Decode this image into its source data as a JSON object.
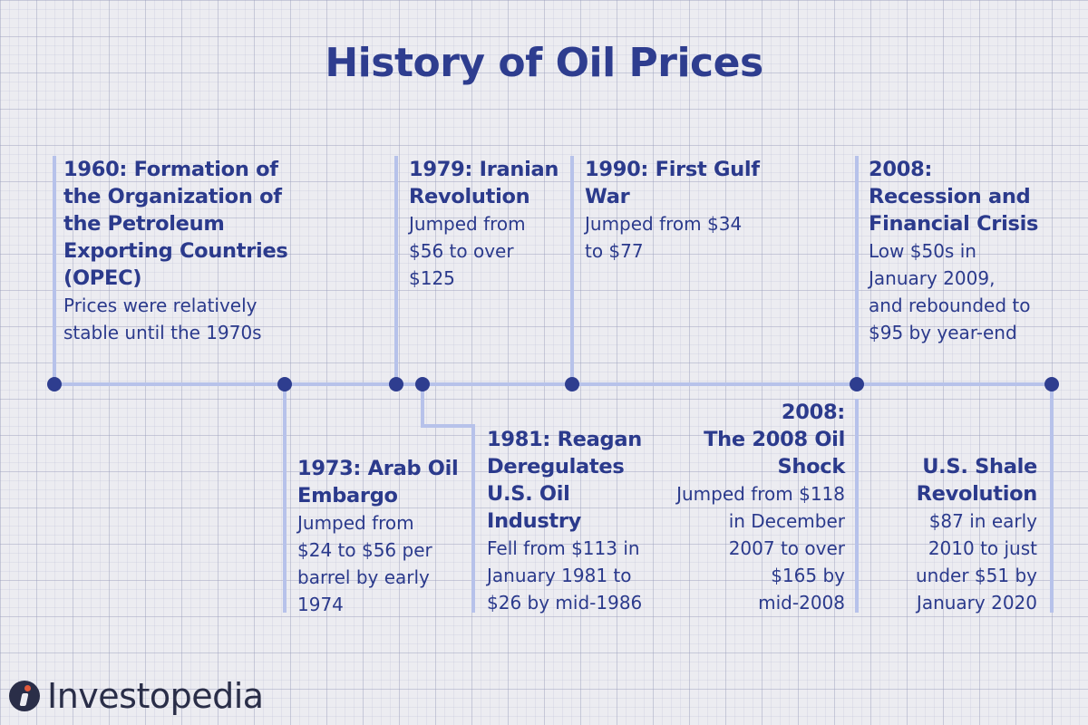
{
  "title": "History of Oil Prices",
  "events": [
    {
      "head": [
        "1960: Formation of",
        "the Organization of",
        "the Petroleum",
        "Exporting Countries",
        "(OPEC)"
      ],
      "desc": [
        "Prices were relatively",
        "stable until the 1970s"
      ]
    },
    {
      "head": [
        "1973: Arab Oil",
        "Embargo"
      ],
      "desc": [
        "Jumped from",
        "$24 to $56 per",
        "barrel by early",
        "1974"
      ]
    },
    {
      "head": [
        "1979: Iranian",
        "Revolution"
      ],
      "desc": [
        "Jumped from",
        "$56 to over",
        "$125"
      ]
    },
    {
      "head": [
        "1981: Reagan",
        "Deregulates",
        "U.S. Oil",
        "Industry"
      ],
      "desc": [
        "Fell from $113 in",
        "January 1981 to",
        "$26 by mid-1986"
      ]
    },
    {
      "head": [
        "1990: First Gulf",
        "War"
      ],
      "desc": [
        "Jumped from $34",
        "to $77"
      ]
    },
    {
      "head": [
        "2008:",
        "The 2008 Oil",
        "Shock"
      ],
      "desc": [
        "Jumped from $118",
        "in December",
        "2007 to over",
        "$165 by",
        "mid-2008"
      ]
    },
    {
      "head": [
        "2008:",
        "Recession and",
        "Financial Crisis"
      ],
      "desc": [
        "Low $50s in",
        "January 2009,",
        "and rebounded to",
        "$95 by year-end"
      ]
    },
    {
      "head": [
        "U.S. Shale",
        "Revolution"
      ],
      "desc": [
        "$87 in early",
        "2010 to just",
        "under $51 by",
        "January 2020"
      ]
    }
  ],
  "logo": {
    "text": "Investopedia",
    "icon": "investopedia-logo-icon"
  },
  "colors": {
    "title": "#2e3d8f",
    "text": "#2b3a8c",
    "line": "#b7c2ea",
    "dot": "#2e3d8f"
  }
}
